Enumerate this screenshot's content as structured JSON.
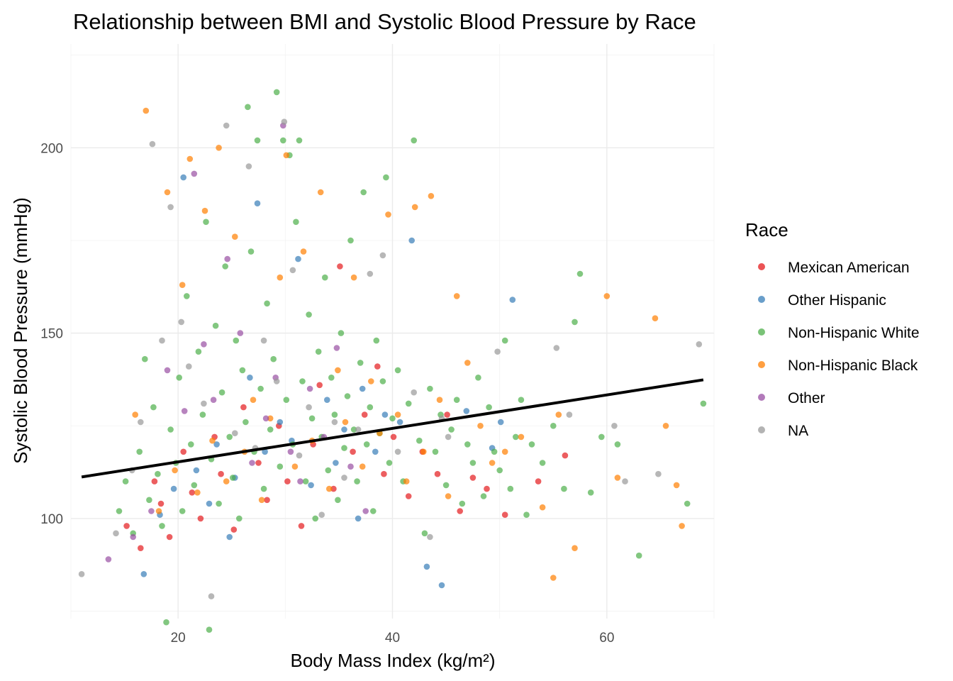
{
  "chart_data": {
    "type": "scatter",
    "title": "Relationship between BMI and Systolic Blood Pressure by Race",
    "xlabel": "Body Mass Index (kg/m²)",
    "ylabel": "Systolic Blood Pressure (mmHg)",
    "xlim": [
      10,
      70
    ],
    "ylim": [
      73,
      228
    ],
    "x_ticks": [
      20,
      40,
      60
    ],
    "y_ticks": [
      100,
      150,
      200
    ],
    "grid": true,
    "legend": {
      "title": "Race",
      "position": "right",
      "entries": [
        {
          "name": "Mexican American",
          "color": "#E41A1C"
        },
        {
          "name": "Other Hispanic",
          "color": "#377EB8"
        },
        {
          "name": "Non-Hispanic White",
          "color": "#4DAF4A"
        },
        {
          "name": "Non-Hispanic Black",
          "color": "#FF7F00"
        },
        {
          "name": "Other",
          "color": "#984EA3"
        },
        {
          "name": "NA",
          "color": "#999999"
        }
      ]
    },
    "series": [
      {
        "name": "Mexican American",
        "color": "#E41A1C",
        "points": [
          [
            15.2,
            98
          ],
          [
            16.5,
            92
          ],
          [
            17.8,
            110
          ],
          [
            18.4,
            104
          ],
          [
            19.2,
            95
          ],
          [
            20.5,
            118
          ],
          [
            21.3,
            107
          ],
          [
            22.1,
            100
          ],
          [
            23.4,
            122
          ],
          [
            24.0,
            112
          ],
          [
            25.2,
            97
          ],
          [
            26.1,
            130
          ],
          [
            27.5,
            115
          ],
          [
            28.3,
            105
          ],
          [
            29.4,
            125
          ],
          [
            30.2,
            110
          ],
          [
            31.5,
            98
          ],
          [
            32.6,
            120
          ],
          [
            33.2,
            136
          ],
          [
            34.5,
            108
          ],
          [
            35.1,
            168
          ],
          [
            36.3,
            118
          ],
          [
            37.4,
            128
          ],
          [
            38.6,
            141
          ],
          [
            39.2,
            112
          ],
          [
            40.1,
            122
          ],
          [
            41.5,
            106
          ],
          [
            42.8,
            118
          ],
          [
            44.2,
            112
          ],
          [
            45.1,
            128
          ],
          [
            46.3,
            102
          ],
          [
            47.5,
            111
          ],
          [
            48.8,
            108
          ],
          [
            50.5,
            101
          ],
          [
            53.6,
            110
          ],
          [
            56.1,
            117
          ]
        ]
      },
      {
        "name": "Other Hispanic",
        "color": "#377EB8",
        "points": [
          [
            16.8,
            85
          ],
          [
            18.3,
            101
          ],
          [
            19.6,
            108
          ],
          [
            20.5,
            192
          ],
          [
            21.7,
            113
          ],
          [
            22.9,
            104
          ],
          [
            23.6,
            120
          ],
          [
            24.8,
            95
          ],
          [
            25.3,
            111
          ],
          [
            26.7,
            138
          ],
          [
            27.4,
            185
          ],
          [
            28.1,
            118
          ],
          [
            29.5,
            126
          ],
          [
            30.6,
            121
          ],
          [
            31.2,
            170
          ],
          [
            32.4,
            109
          ],
          [
            33.9,
            132
          ],
          [
            34.7,
            115
          ],
          [
            35.5,
            124
          ],
          [
            36.8,
            100
          ],
          [
            37.2,
            135
          ],
          [
            38.4,
            118
          ],
          [
            39.3,
            128
          ],
          [
            40.7,
            126
          ],
          [
            41.8,
            175
          ],
          [
            43.2,
            87
          ],
          [
            44.6,
            82
          ],
          [
            46.9,
            129
          ],
          [
            49.3,
            119
          ],
          [
            50.1,
            126
          ],
          [
            51.2,
            159
          ]
        ]
      },
      {
        "name": "Non-Hispanic White",
        "color": "#4DAF4A",
        "points": [
          [
            14.5,
            102
          ],
          [
            15.1,
            110
          ],
          [
            15.8,
            96
          ],
          [
            16.4,
            118
          ],
          [
            16.9,
            143
          ],
          [
            17.3,
            105
          ],
          [
            17.7,
            130
          ],
          [
            18.1,
            112
          ],
          [
            18.5,
            98
          ],
          [
            18.9,
            72
          ],
          [
            19.3,
            124
          ],
          [
            19.8,
            115
          ],
          [
            20.1,
            138
          ],
          [
            20.4,
            102
          ],
          [
            20.8,
            160
          ],
          [
            21.2,
            120
          ],
          [
            21.5,
            109
          ],
          [
            21.9,
            145
          ],
          [
            22.3,
            128
          ],
          [
            22.6,
            180
          ],
          [
            22.9,
            70
          ],
          [
            23.1,
            116
          ],
          [
            23.5,
            152
          ],
          [
            23.8,
            104
          ],
          [
            24.1,
            134
          ],
          [
            24.4,
            168
          ],
          [
            24.8,
            122
          ],
          [
            25.1,
            111
          ],
          [
            25.4,
            148
          ],
          [
            25.7,
            100
          ],
          [
            26.0,
            140
          ],
          [
            26.3,
            126
          ],
          [
            26.5,
            211
          ],
          [
            26.8,
            172
          ],
          [
            27.1,
            118
          ],
          [
            27.4,
            202
          ],
          [
            27.7,
            135
          ],
          [
            28.0,
            108
          ],
          [
            28.3,
            158
          ],
          [
            28.6,
            124
          ],
          [
            28.9,
            143
          ],
          [
            29.2,
            215
          ],
          [
            29.5,
            114
          ],
          [
            29.8,
            202
          ],
          [
            30.1,
            132
          ],
          [
            30.4,
            198
          ],
          [
            30.7,
            120
          ],
          [
            31.0,
            180
          ],
          [
            31.3,
            202
          ],
          [
            31.6,
            137
          ],
          [
            31.9,
            110
          ],
          [
            32.2,
            155
          ],
          [
            32.5,
            127
          ],
          [
            32.8,
            100
          ],
          [
            33.1,
            145
          ],
          [
            33.4,
            122
          ],
          [
            33.7,
            165
          ],
          [
            34.0,
            113
          ],
          [
            34.3,
            138
          ],
          [
            34.6,
            128
          ],
          [
            34.9,
            105
          ],
          [
            35.2,
            150
          ],
          [
            35.5,
            119
          ],
          [
            35.8,
            133
          ],
          [
            36.1,
            175
          ],
          [
            36.4,
            124
          ],
          [
            36.7,
            110
          ],
          [
            37.0,
            142
          ],
          [
            37.3,
            188
          ],
          [
            37.6,
            120
          ],
          [
            37.9,
            130
          ],
          [
            38.2,
            102
          ],
          [
            38.5,
            148
          ],
          [
            38.8,
            123
          ],
          [
            39.1,
            137
          ],
          [
            39.4,
            192
          ],
          [
            39.7,
            115
          ],
          [
            40.0,
            127
          ],
          [
            40.5,
            140
          ],
          [
            41.0,
            110
          ],
          [
            41.5,
            131
          ],
          [
            42.0,
            202
          ],
          [
            42.5,
            121
          ],
          [
            43.0,
            96
          ],
          [
            43.5,
            135
          ],
          [
            44.0,
            118
          ],
          [
            44.5,
            128
          ],
          [
            45.0,
            109
          ],
          [
            45.5,
            124
          ],
          [
            46.0,
            132
          ],
          [
            46.5,
            104
          ],
          [
            47.0,
            120
          ],
          [
            47.5,
            115
          ],
          [
            48.0,
            138
          ],
          [
            48.5,
            106
          ],
          [
            49.0,
            130
          ],
          [
            49.5,
            118
          ],
          [
            50.0,
            113
          ],
          [
            50.5,
            148
          ],
          [
            51.0,
            108
          ],
          [
            51.5,
            122
          ],
          [
            52.0,
            132
          ],
          [
            52.5,
            101
          ],
          [
            53.0,
            120
          ],
          [
            54.0,
            115
          ],
          [
            55.0,
            125
          ],
          [
            56.0,
            108
          ],
          [
            57.0,
            153
          ],
          [
            57.5,
            166
          ],
          [
            58.5,
            107
          ],
          [
            59.5,
            122
          ],
          [
            61.0,
            120
          ],
          [
            63.0,
            90
          ],
          [
            67.5,
            104
          ],
          [
            69.0,
            131
          ]
        ]
      },
      {
        "name": "Non-Hispanic Black",
        "color": "#FF7F00",
        "points": [
          [
            16.0,
            128
          ],
          [
            17.0,
            210
          ],
          [
            18.2,
            102
          ],
          [
            19.0,
            188
          ],
          [
            19.7,
            113
          ],
          [
            20.4,
            163
          ],
          [
            21.1,
            197
          ],
          [
            21.8,
            107
          ],
          [
            22.5,
            183
          ],
          [
            23.2,
            121
          ],
          [
            23.8,
            200
          ],
          [
            24.5,
            110
          ],
          [
            25.3,
            176
          ],
          [
            26.2,
            118
          ],
          [
            27.0,
            132
          ],
          [
            27.8,
            105
          ],
          [
            28.6,
            127
          ],
          [
            29.5,
            165
          ],
          [
            30.1,
            198
          ],
          [
            30.9,
            114
          ],
          [
            31.7,
            172
          ],
          [
            32.5,
            121
          ],
          [
            33.3,
            188
          ],
          [
            34.1,
            108
          ],
          [
            34.9,
            140
          ],
          [
            35.6,
            126
          ],
          [
            36.4,
            165
          ],
          [
            37.2,
            114
          ],
          [
            38.0,
            137
          ],
          [
            38.8,
            123
          ],
          [
            39.6,
            182
          ],
          [
            40.5,
            128
          ],
          [
            41.3,
            110
          ],
          [
            42.1,
            184
          ],
          [
            42.9,
            118
          ],
          [
            43.6,
            187
          ],
          [
            44.4,
            132
          ],
          [
            45.2,
            106
          ],
          [
            46.0,
            160
          ],
          [
            47.0,
            142
          ],
          [
            48.2,
            125
          ],
          [
            49.3,
            115
          ],
          [
            50.5,
            118
          ],
          [
            52.0,
            122
          ],
          [
            54.0,
            103
          ],
          [
            55.0,
            84
          ],
          [
            55.5,
            128
          ],
          [
            57.0,
            92
          ],
          [
            60.0,
            160
          ],
          [
            61.0,
            111
          ],
          [
            64.5,
            154
          ],
          [
            65.5,
            125
          ],
          [
            66.5,
            109
          ],
          [
            67.0,
            98
          ]
        ]
      },
      {
        "name": "Other",
        "color": "#984EA3",
        "points": [
          [
            13.5,
            89
          ],
          [
            15.8,
            95
          ],
          [
            17.5,
            102
          ],
          [
            19.0,
            140
          ],
          [
            20.6,
            129
          ],
          [
            21.5,
            193
          ],
          [
            22.4,
            147
          ],
          [
            23.3,
            132
          ],
          [
            24.6,
            170
          ],
          [
            25.8,
            150
          ],
          [
            26.9,
            115
          ],
          [
            28.2,
            127
          ],
          [
            29.1,
            138
          ],
          [
            29.8,
            206
          ],
          [
            30.5,
            118
          ],
          [
            31.4,
            110
          ],
          [
            32.3,
            135
          ],
          [
            33.6,
            122
          ],
          [
            34.8,
            146
          ],
          [
            36.1,
            114
          ],
          [
            37.5,
            102
          ]
        ]
      },
      {
        "name": "NA",
        "color": "#999999",
        "points": [
          [
            11.0,
            85
          ],
          [
            14.2,
            96
          ],
          [
            15.7,
            113
          ],
          [
            16.5,
            126
          ],
          [
            17.6,
            201
          ],
          [
            18.5,
            148
          ],
          [
            19.3,
            184
          ],
          [
            20.3,
            153
          ],
          [
            21.0,
            141
          ],
          [
            22.4,
            131
          ],
          [
            23.1,
            79
          ],
          [
            24.5,
            206
          ],
          [
            25.3,
            123
          ],
          [
            26.6,
            195
          ],
          [
            27.2,
            119
          ],
          [
            28.0,
            148
          ],
          [
            29.2,
            137
          ],
          [
            29.9,
            207
          ],
          [
            30.7,
            167
          ],
          [
            31.3,
            117
          ],
          [
            32.2,
            130
          ],
          [
            33.4,
            101
          ],
          [
            34.6,
            126
          ],
          [
            35.5,
            111
          ],
          [
            36.8,
            124
          ],
          [
            37.9,
            166
          ],
          [
            39.1,
            171
          ],
          [
            40.5,
            118
          ],
          [
            42.0,
            134
          ],
          [
            43.5,
            95
          ],
          [
            44.6,
            127
          ],
          [
            45.2,
            122
          ],
          [
            49.8,
            145
          ],
          [
            55.3,
            146
          ],
          [
            56.5,
            128
          ],
          [
            60.7,
            125
          ],
          [
            61.7,
            110
          ],
          [
            64.8,
            112
          ],
          [
            68.6,
            147
          ]
        ]
      }
    ],
    "trend_line": {
      "x": [
        11,
        69
      ],
      "y": [
        111.2,
        137.4
      ],
      "color": "#000000"
    }
  }
}
